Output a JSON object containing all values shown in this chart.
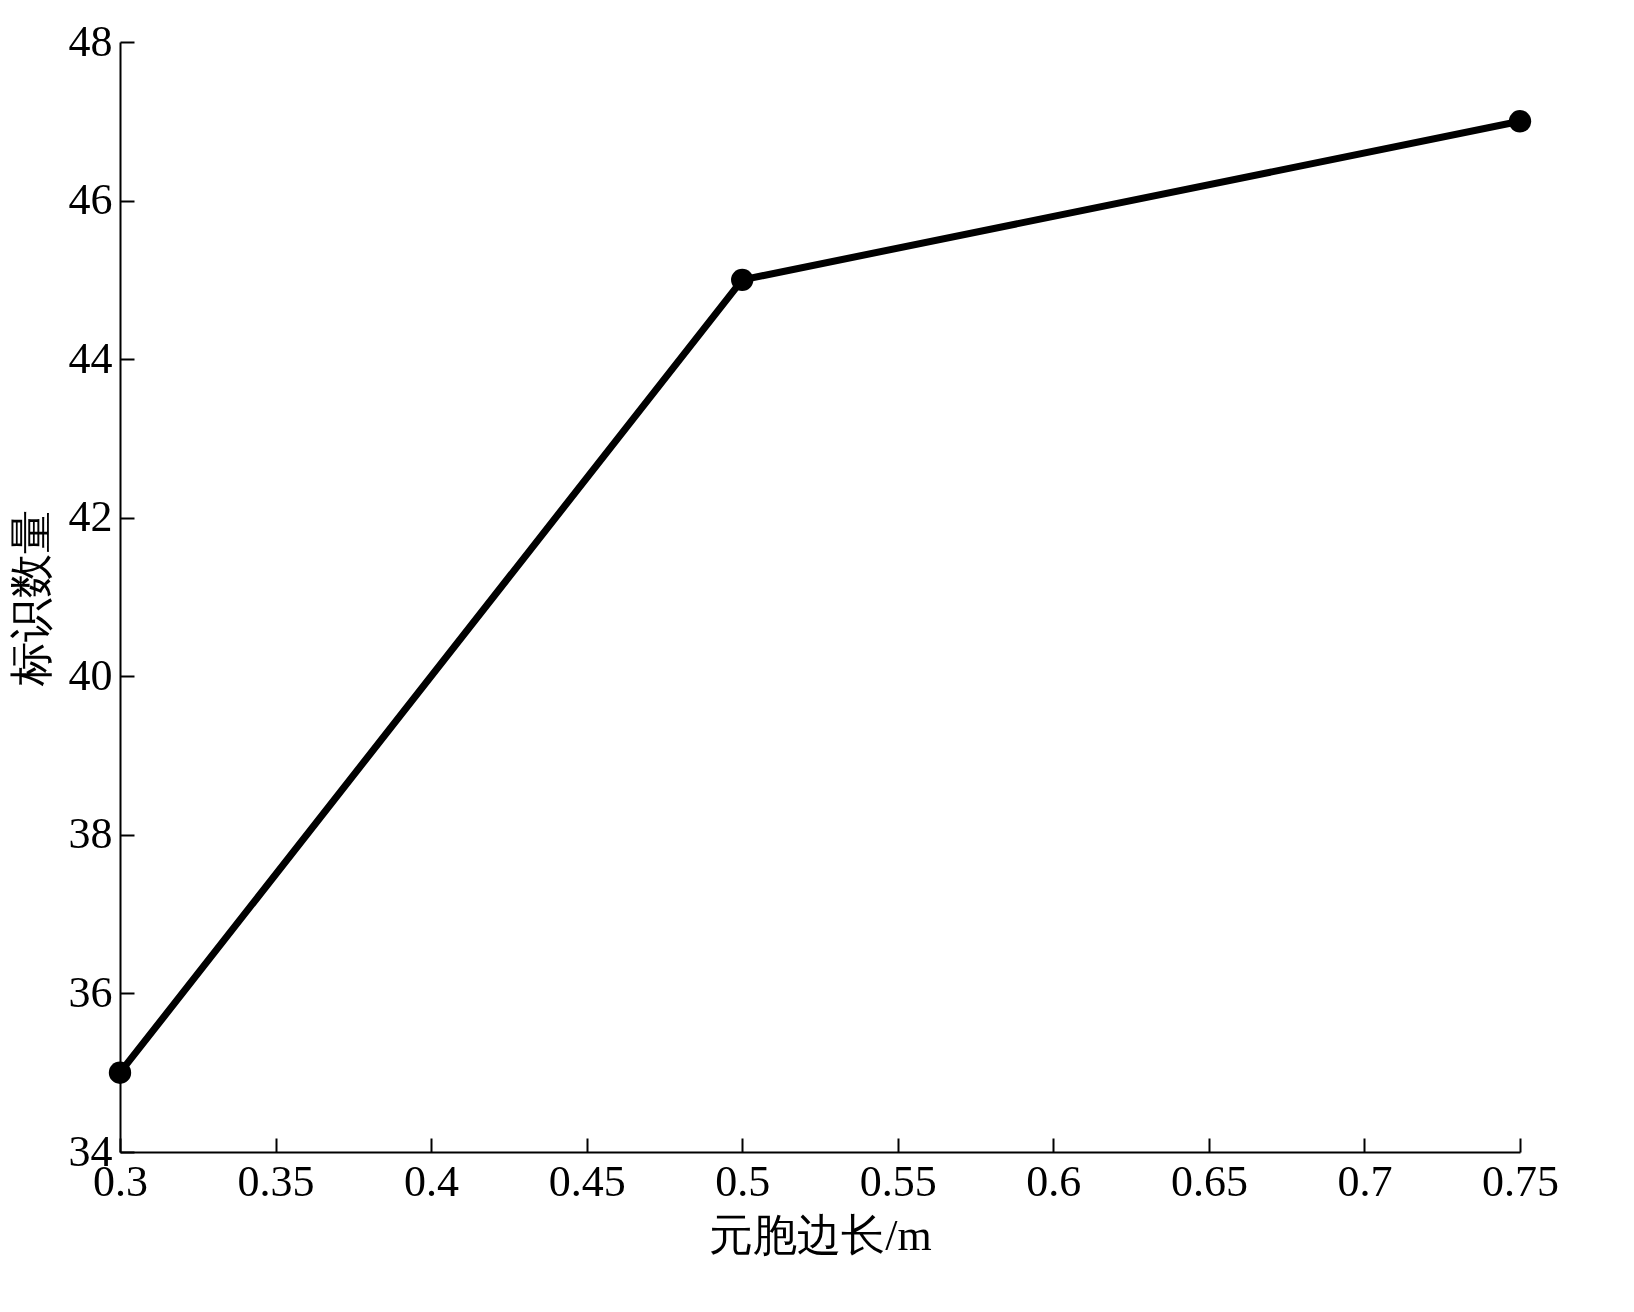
{
  "chart_data": {
    "type": "line",
    "xlabel": "元胞边长/m",
    "ylabel": "标识数量",
    "x": [
      0.3,
      0.5,
      0.75
    ],
    "series": [
      {
        "color": "#000000",
        "values": [
          35,
          45,
          47
        ]
      }
    ],
    "xlim": [
      0.3,
      0.75
    ],
    "xticks": [
      0.3,
      0.35,
      0.4,
      0.45,
      0.5,
      0.55,
      0.6,
      0.65,
      0.7,
      0.75
    ],
    "ylim": [
      34,
      48
    ],
    "yticks": [
      34,
      36,
      38,
      40,
      42,
      44,
      46,
      48
    ],
    "marker": "circle",
    "line_style": "solid",
    "grid": false
  }
}
